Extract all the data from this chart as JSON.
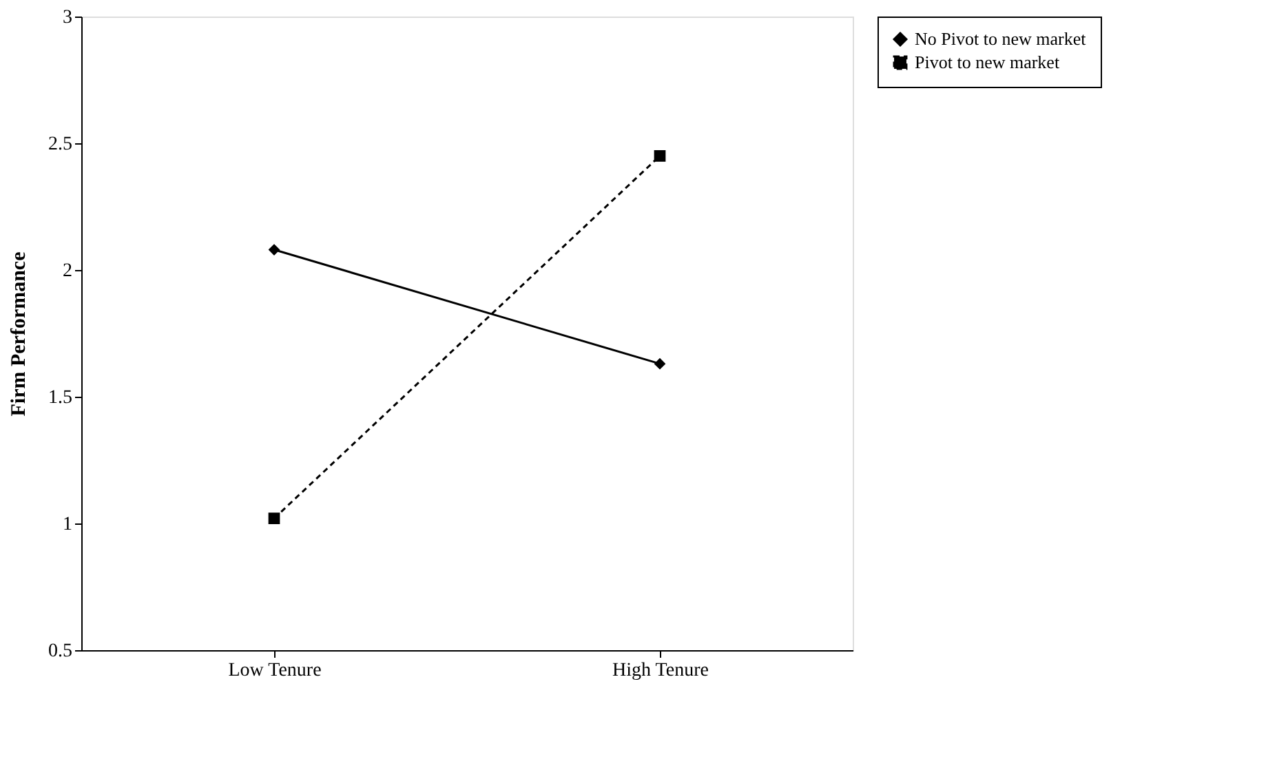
{
  "chart_data": {
    "type": "line",
    "ylabel": "Firm Performance",
    "categories": [
      "Low Tenure",
      "High Tenure"
    ],
    "ylim": [
      0.5,
      3
    ],
    "yticks": [
      0.5,
      1,
      1.5,
      2,
      2.5,
      3
    ],
    "grid": false,
    "legend": "right",
    "series": [
      {
        "name": "No Pivot to new market",
        "color": "#000000",
        "values": [
          2.08,
          1.63
        ],
        "marker": "diamond",
        "line_style": "solid"
      },
      {
        "name": "Pivot to new market",
        "color": "#000000",
        "values": [
          1.02,
          2.45
        ],
        "marker": "square",
        "line_style": "dashed"
      }
    ]
  }
}
